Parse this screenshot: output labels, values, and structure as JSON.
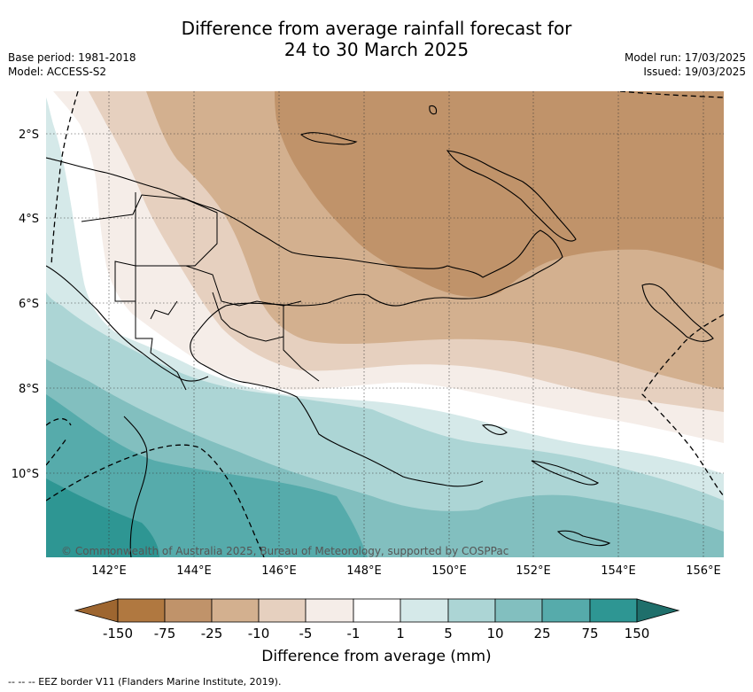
{
  "header": {
    "title_line1": "Difference from average rainfall forecast for",
    "title_line2": "24 to 30 March 2025",
    "base_period": "Base period: 1981-2018",
    "model": "Model: ACCESS-S2",
    "model_run": "Model run: 17/03/2025",
    "issued": "Issued: 19/03/2025"
  },
  "map": {
    "lat_ticks": [
      "2°S",
      "4°S",
      "6°S",
      "8°S",
      "10°S"
    ],
    "lon_ticks": [
      "142°E",
      "144°E",
      "146°E",
      "148°E",
      "150°E",
      "152°E",
      "154°E",
      "156°E"
    ],
    "copyright": "© Commonwealth of Australia 2025, Bureau of Meteorology, supported by COSPPac"
  },
  "colorbar": {
    "title": "Difference from average (mm)",
    "tick_labels": [
      "-150",
      "-75",
      "-25",
      "-10",
      "-5",
      "-1",
      "1",
      "5",
      "10",
      "25",
      "75",
      "150"
    ],
    "colors": {
      "lt_neg150": "#9e6630",
      "neg150_neg75": "#b07840",
      "neg75_neg25": "#c0936a",
      "neg25_neg10": "#d3b08f",
      "neg10_neg5": "#e6d0bf",
      "neg5_neg1": "#f5ede8",
      "neg1_1": "#ffffff",
      "p1_5": "#d5e9e9",
      "p5_10": "#acd5d5",
      "p10_25": "#82bfbf",
      "p25_75": "#56abab",
      "p75_150": "#2e9693",
      "gt_150": "#1f6f6b"
    }
  },
  "footnote": "--  --  -- EEZ border V11 (Flanders Marine Institute, 2019)."
}
